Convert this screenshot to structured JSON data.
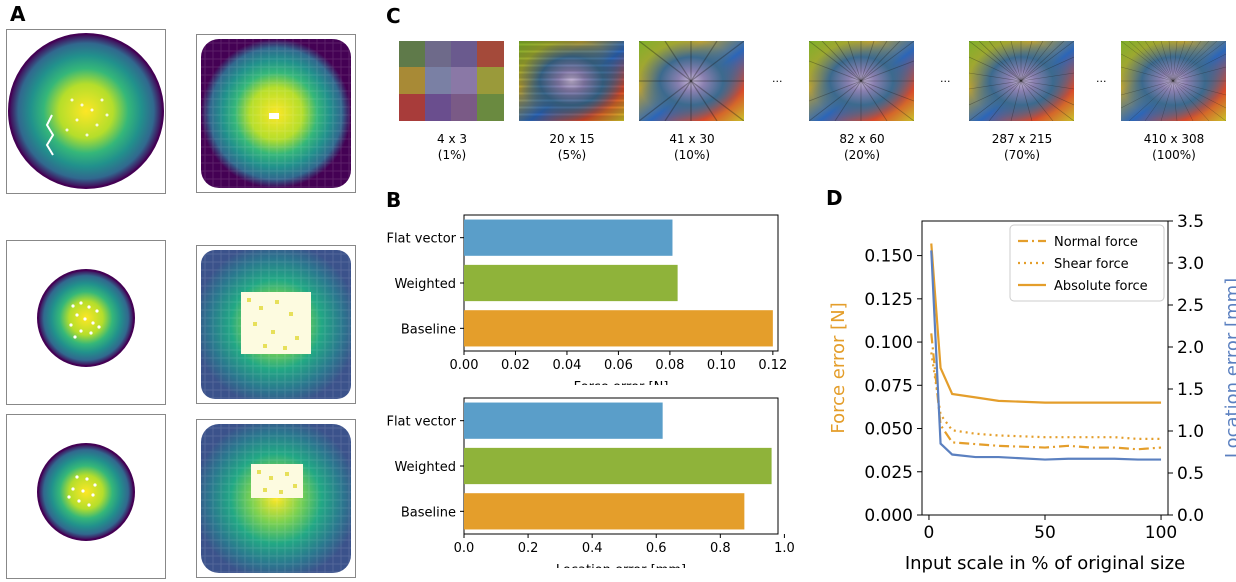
{
  "panels": {
    "a": "A",
    "b": "B",
    "c": "C",
    "d": "D"
  },
  "thumbnails": [
    {
      "size": "4 x 3",
      "pct": "(1%)"
    },
    {
      "size": "20 x 15",
      "pct": "(5%)"
    },
    {
      "size": "41 x 30",
      "pct": "(10%)"
    },
    {
      "size": "82 x 60",
      "pct": "(20%)"
    },
    {
      "size": "287 x 215",
      "pct": "(70%)"
    },
    {
      "size": "410 x 308",
      "pct": "(100%)"
    }
  ],
  "ellipsis": "...",
  "colors": {
    "blue": "#5a9ec9",
    "green": "#8fb33a",
    "orange": "#e49e2b",
    "loc_line": "#5b80c0"
  },
  "chart_data": [
    {
      "type": "bar",
      "orientation": "horizontal",
      "categories": [
        "Flat vector",
        "Weighted",
        "Baseline"
      ],
      "values": [
        0.081,
        0.083,
        0.12
      ],
      "xlabel": "Force error [N]",
      "xticks": [
        "0.00",
        "0.02",
        "0.04",
        "0.06",
        "0.08",
        "0.10",
        "0.12"
      ],
      "xlim": [
        0,
        0.122
      ]
    },
    {
      "type": "bar",
      "orientation": "horizontal",
      "categories": [
        "Flat vector",
        "Weighted",
        "Baseline"
      ],
      "values": [
        0.62,
        0.96,
        0.875
      ],
      "xlabel": "Location error [mm]",
      "xticks": [
        "0.0",
        "0.2",
        "0.4",
        "0.6",
        "0.8",
        "1.0"
      ],
      "xlim": [
        0,
        0.98
      ]
    },
    {
      "type": "line",
      "xlabel": "Input scale in % of original size",
      "ylabel": "Force error [N]",
      "y2label": "Location error [mm]",
      "xlim": [
        -3,
        103
      ],
      "ylim": [
        0,
        0.17
      ],
      "y2lim": [
        0,
        3.5
      ],
      "xticks": [
        "0",
        "50",
        "100"
      ],
      "yticks": [
        "0.000",
        "0.025",
        "0.050",
        "0.075",
        "0.100",
        "0.125",
        "0.150"
      ],
      "y2ticks": [
        "0.0",
        "0.5",
        "1.0",
        "1.5",
        "2.0",
        "2.5",
        "3.0",
        "3.5"
      ],
      "legend_position": "top-right",
      "x": [
        1,
        5,
        10,
        20,
        30,
        50,
        60,
        70,
        80,
        90,
        100
      ],
      "series": [
        {
          "name": "Normal force",
          "axis": "left",
          "style": "dashdot",
          "values": [
            0.105,
            0.052,
            0.042,
            0.041,
            0.04,
            0.039,
            0.04,
            0.039,
            0.039,
            0.038,
            0.039
          ]
        },
        {
          "name": "Shear force",
          "axis": "left",
          "style": "dotted",
          "values": [
            0.094,
            0.058,
            0.049,
            0.047,
            0.046,
            0.045,
            0.045,
            0.045,
            0.045,
            0.044,
            0.044
          ]
        },
        {
          "name": "Absolute force",
          "axis": "left",
          "style": "solid",
          "values": [
            0.157,
            0.085,
            0.07,
            0.068,
            0.066,
            0.065,
            0.065,
            0.065,
            0.065,
            0.065,
            0.065
          ]
        },
        {
          "name": "",
          "axis": "right",
          "style": "solid",
          "values": [
            3.15,
            0.85,
            0.72,
            0.69,
            0.69,
            0.66,
            0.67,
            0.67,
            0.67,
            0.66,
            0.66
          ]
        }
      ]
    }
  ]
}
